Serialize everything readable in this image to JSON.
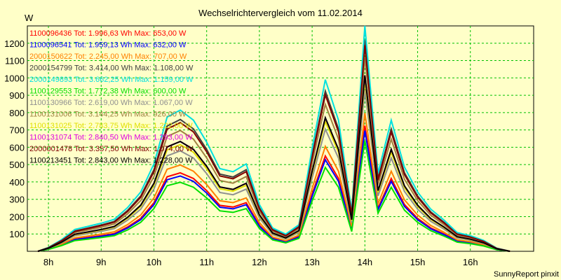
{
  "chart_data": {
    "type": "line",
    "title": "Wechselrichtervergleich vom 11.02.2014",
    "ylabel": "W",
    "xlabel": "",
    "footer": "SunnyReport pinxit",
    "ylim": [
      0,
      1300
    ],
    "xlim": [
      7.6,
      17.2
    ],
    "grid": true,
    "legend_placement": "top-left",
    "y_ticks": [
      100,
      200,
      300,
      400,
      500,
      600,
      700,
      800,
      900,
      1000,
      1100,
      1200
    ],
    "x_ticks": [
      {
        "x": 8,
        "label": "8h"
      },
      {
        "x": 9,
        "label": "9h"
      },
      {
        "x": 10,
        "label": "10h"
      },
      {
        "x": 11,
        "label": "11h"
      },
      {
        "x": 12,
        "label": "12h"
      },
      {
        "x": 13,
        "label": "13h"
      },
      {
        "x": 14,
        "label": "14h"
      },
      {
        "x": 15,
        "label": "15h"
      },
      {
        "x": 16,
        "label": "16h"
      }
    ],
    "x": [
      7.8,
      8.0,
      8.25,
      8.5,
      8.75,
      9.0,
      9.25,
      9.5,
      9.75,
      10.0,
      10.25,
      10.5,
      10.75,
      11.0,
      11.25,
      11.5,
      11.75,
      12.0,
      12.25,
      12.5,
      12.75,
      13.0,
      13.25,
      13.5,
      13.75,
      14.0,
      14.25,
      14.5,
      14.75,
      15.0,
      15.25,
      15.5,
      15.75,
      16.0,
      16.25,
      16.5,
      16.75
    ],
    "series": [
      {
        "name": "1100096436 Tot: 1.996,63 Wh Max: 653,00 W",
        "color": "#FF0000",
        "scale": 0.5
      },
      {
        "name": "1100096541 Tot: 1.959,13 Wh Max: 632,00 W",
        "color": "#0000FF",
        "scale": 0.48
      },
      {
        "name": "2000150622 Tot: 2.245,00 Wh Max: 707,00 W",
        "color": "#FF8000",
        "scale": 0.55
      },
      {
        "name": "2000154799 Tot: 3.414,00 Wh Max: 1.108,00 W",
        "color": "#404040",
        "scale": 0.84
      },
      {
        "name": "2000149893 Tot: 3.662,25 Wh Max: 1.159,00 W",
        "color": "#00E0E0",
        "scale": 0.9
      },
      {
        "name": "1100129553 Tot: 1.772,38 Wh Max: 600,00 W",
        "color": "#00E000",
        "scale": 0.44
      },
      {
        "name": "1100130966 Tot: 2.619,00 Wh Max: 1.067,00 W",
        "color": "#909090",
        "scale": 0.64
      },
      {
        "name": "1100131006 Tot: 3.144,25 Wh Max: 926,00 W",
        "color": "#A08040",
        "scale": 0.77
      },
      {
        "name": "1100131025 Tot: 2.783,75 Wh Max: 1.222,00 W",
        "color": "#E0E000",
        "scale": 0.68
      },
      {
        "name": "1100131074 Tot: 2.840,50 Wh Max: 1.293,00 W",
        "color": "#E000E0",
        "scale": 0.7
      },
      {
        "name": "2000001478 Tot: 3.357,50 Wh Max: 1.074,00 W",
        "color": "#800000",
        "scale": 0.82
      },
      {
        "name": "1100213451 Tot: 2.843,00 Wh Max: 1.228,00 W",
        "color": "#000000",
        "scale": 0.7
      }
    ],
    "base_profile": [
      0,
      25,
      75,
      140,
      160,
      180,
      205,
      280,
      380,
      560,
      860,
      905,
      840,
      700,
      530,
      510,
      560,
      300,
      150,
      110,
      170,
      660,
      1100,
      840,
      260,
      1450,
      500,
      840,
      540,
      380,
      270,
      200,
      120,
      100,
      70,
      20,
      0
    ]
  }
}
